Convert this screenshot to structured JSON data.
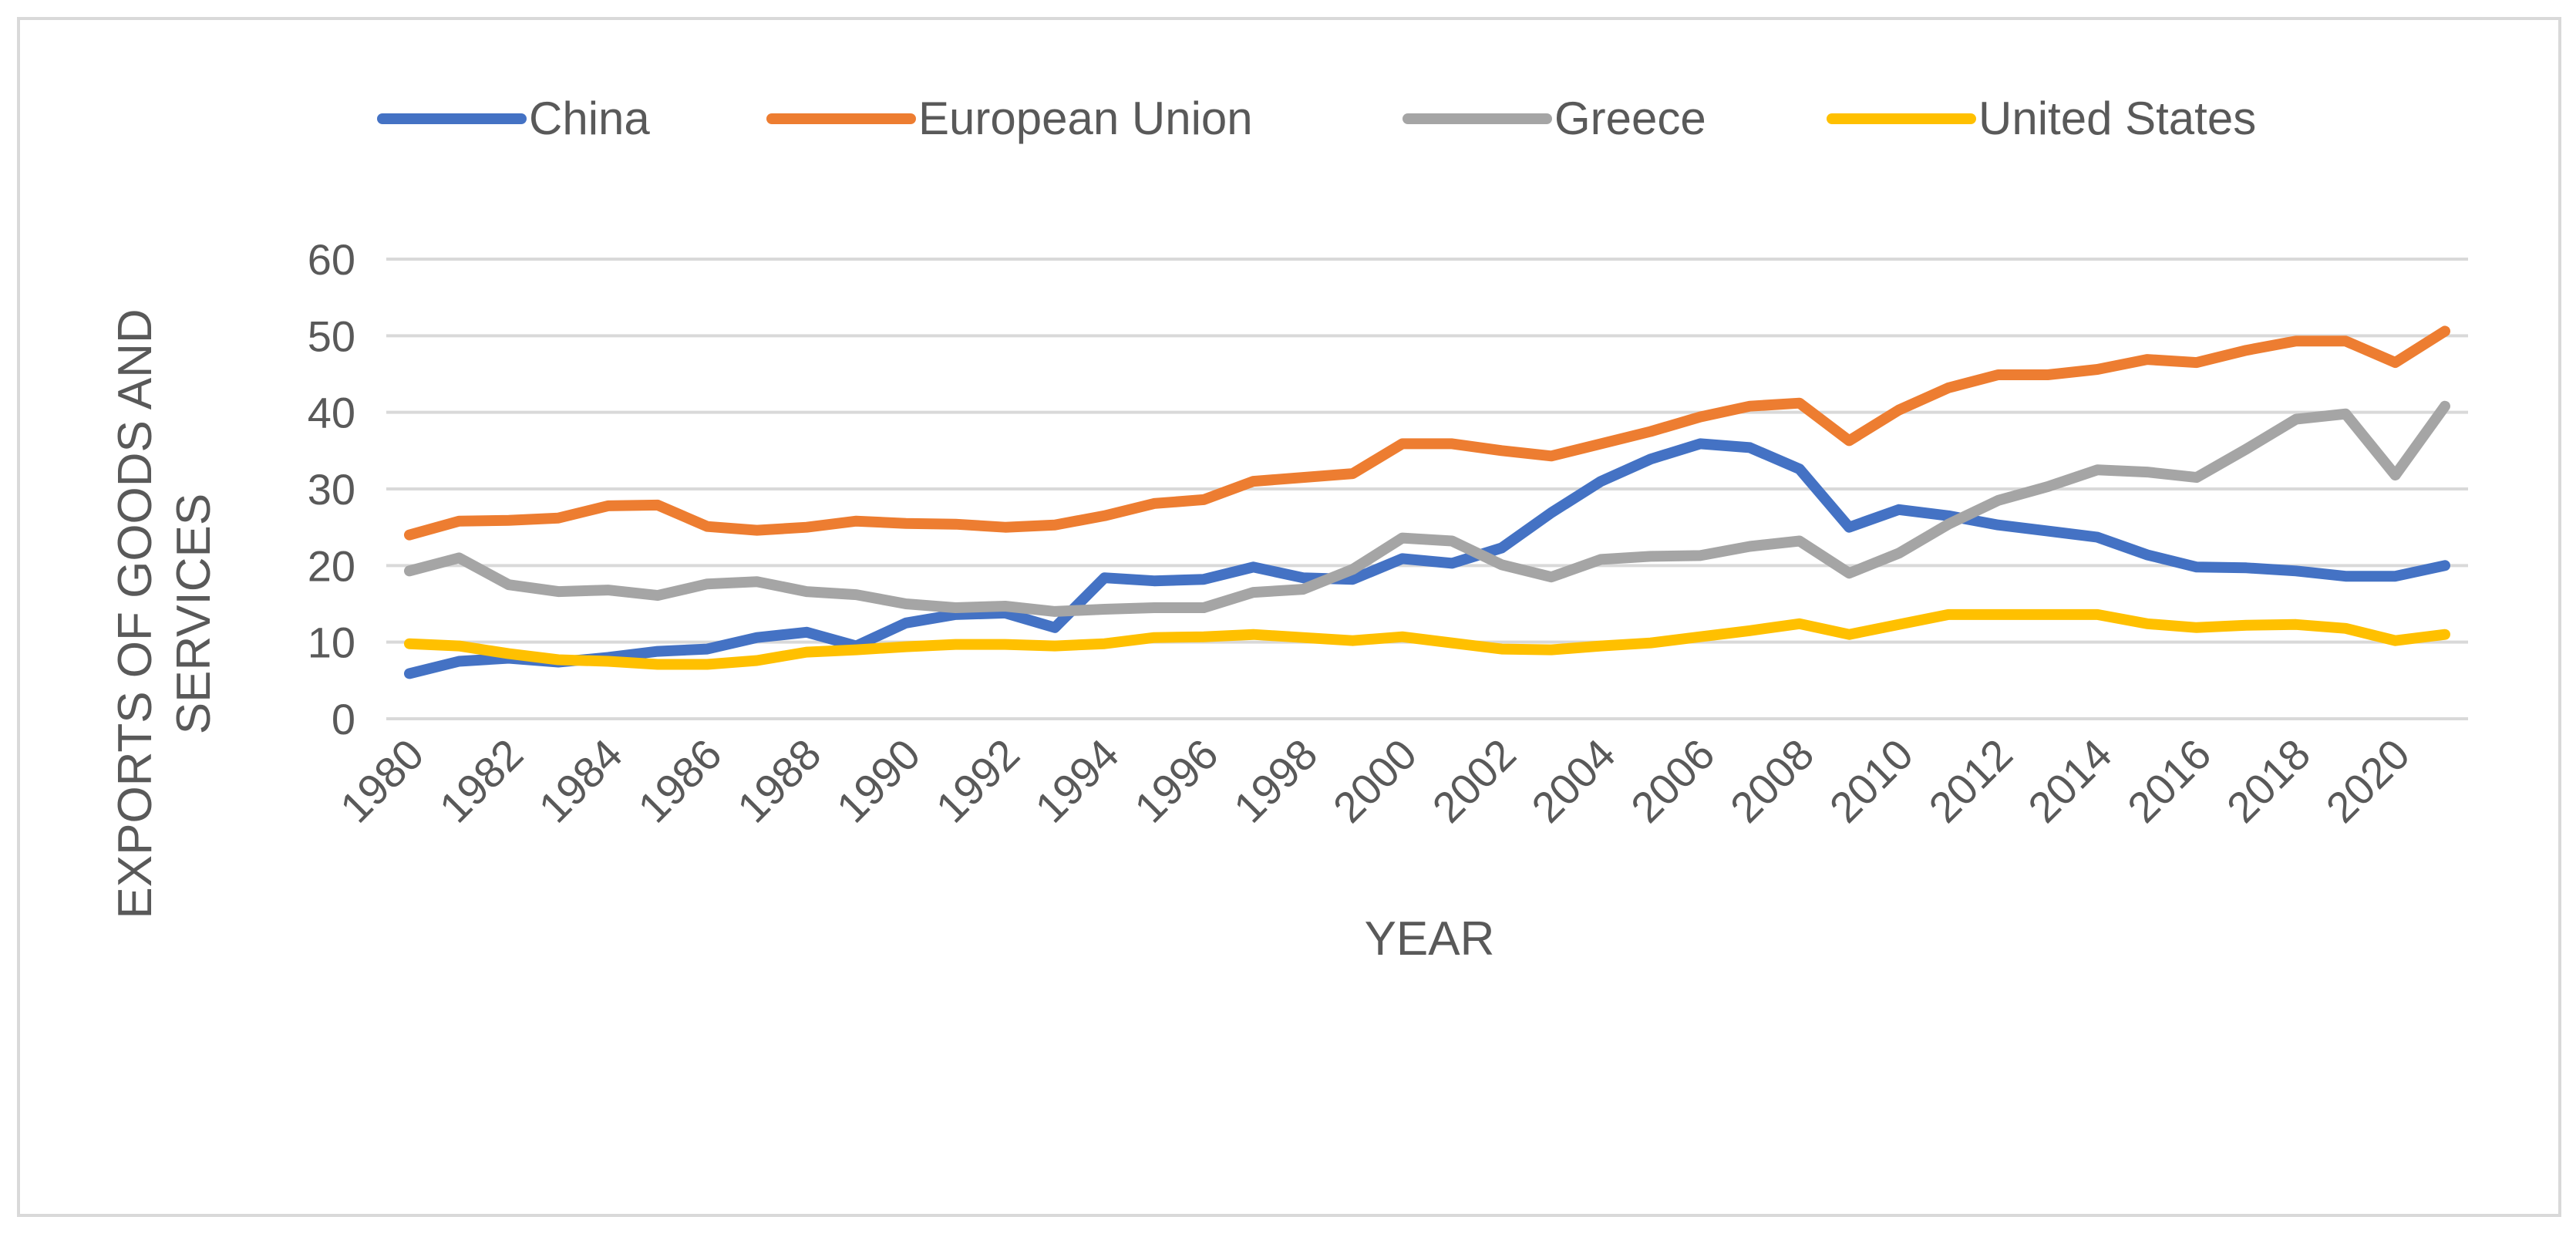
{
  "chart_data": {
    "type": "line",
    "title": "",
    "xlabel": "YEAR",
    "ylabel_lines": [
      "EXPORTS OF GOODS AND",
      "SERVICES"
    ],
    "ylim": [
      0,
      60
    ],
    "yticks": [
      0,
      10,
      20,
      30,
      40,
      50,
      60
    ],
    "x": [
      1980,
      1981,
      1982,
      1983,
      1984,
      1985,
      1986,
      1987,
      1988,
      1989,
      1990,
      1991,
      1992,
      1993,
      1994,
      1995,
      1996,
      1997,
      1998,
      1999,
      2000,
      2001,
      2002,
      2003,
      2004,
      2005,
      2006,
      2007,
      2008,
      2009,
      2010,
      2011,
      2012,
      2013,
      2014,
      2015,
      2016,
      2017,
      2018,
      2019,
      2020,
      2021
    ],
    "xtick_labels": [
      "1980",
      "1982",
      "1984",
      "1986",
      "1988",
      "1990",
      "1992",
      "1994",
      "1996",
      "1998",
      "2000",
      "2002",
      "2004",
      "2006",
      "2008",
      "2010",
      "2012",
      "2014",
      "2016",
      "2018",
      "2020"
    ],
    "grid": true,
    "legend_position": "top",
    "series": [
      {
        "name": "China",
        "color": "#4472C4",
        "values": [
          5.9,
          7.5,
          7.9,
          7.4,
          8.0,
          8.8,
          9.1,
          10.6,
          11.3,
          9.5,
          12.5,
          13.6,
          13.8,
          11.9,
          18.4,
          18.0,
          18.2,
          19.8,
          18.4,
          18.2,
          20.9,
          20.3,
          22.3,
          26.9,
          31.0,
          33.9,
          35.9,
          35.4,
          32.6,
          25.0,
          27.3,
          26.5,
          25.3,
          24.5,
          23.7,
          21.4,
          19.8,
          19.7,
          19.3,
          18.6,
          18.6,
          20.0
        ]
      },
      {
        "name": "European Union",
        "color": "#ED7D31",
        "values": [
          24.0,
          25.8,
          25.9,
          26.2,
          27.8,
          27.9,
          25.1,
          24.6,
          25.0,
          25.8,
          25.5,
          25.4,
          25.0,
          25.3,
          26.5,
          28.1,
          28.6,
          31.0,
          31.5,
          32.0,
          35.9,
          35.9,
          35.0,
          34.3,
          35.9,
          37.5,
          39.4,
          40.8,
          41.2,
          36.3,
          40.3,
          43.2,
          44.9,
          44.9,
          45.6,
          46.9,
          46.5,
          48.1,
          49.3,
          49.3,
          46.5,
          50.6
        ]
      },
      {
        "name": "Greece",
        "color": "#A5A5A5",
        "values": [
          19.3,
          21.0,
          17.5,
          16.6,
          16.8,
          16.1,
          17.6,
          17.9,
          16.6,
          16.2,
          15.0,
          14.5,
          14.7,
          14.0,
          14.3,
          14.5,
          14.5,
          16.5,
          16.9,
          19.5,
          23.6,
          23.2,
          20.1,
          18.5,
          20.8,
          21.2,
          21.3,
          22.5,
          23.2,
          19.0,
          21.6,
          25.4,
          28.5,
          30.3,
          32.5,
          32.2,
          31.5,
          35.2,
          39.1,
          39.8,
          31.8,
          40.8
        ]
      },
      {
        "name": "United States",
        "color": "#FFC000",
        "values": [
          9.8,
          9.5,
          8.5,
          7.7,
          7.5,
          7.1,
          7.1,
          7.6,
          8.7,
          9.0,
          9.4,
          9.7,
          9.7,
          9.5,
          9.8,
          10.6,
          10.7,
          11.0,
          10.6,
          10.2,
          10.7,
          9.9,
          9.1,
          9.0,
          9.5,
          9.9,
          10.7,
          11.5,
          12.4,
          11.0,
          12.3,
          13.6,
          13.6,
          13.6,
          13.6,
          12.4,
          11.9,
          12.2,
          12.3,
          11.8,
          10.2,
          11.0
        ]
      }
    ]
  }
}
